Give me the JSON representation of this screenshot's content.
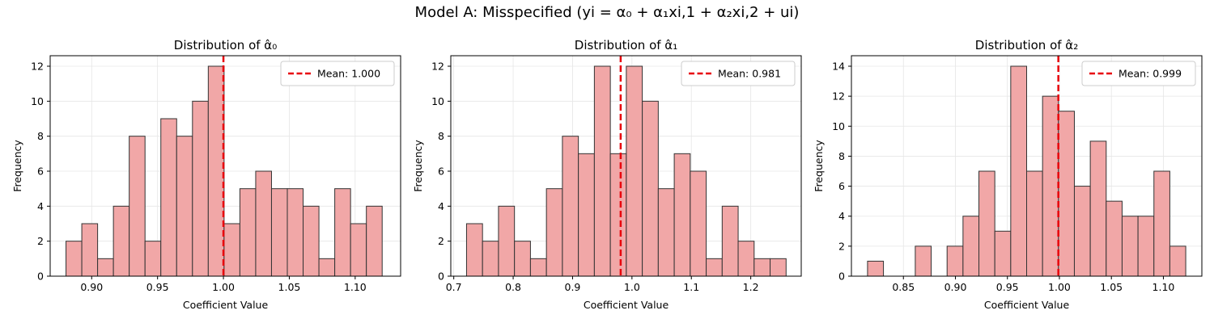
{
  "figure": {
    "suptitle": "Model A: Misspecified (yi = α₀ + α₁xi,1 + α₂xi,2 + ui)"
  },
  "colors": {
    "bar_fill": "#f1a7a7",
    "bar_edge": "#333333",
    "mean_line": "#e8000b"
  },
  "chart_data": [
    {
      "type": "bar",
      "title": "Distribution of α̂₀",
      "xlabel": "Coefficient Value",
      "ylabel": "Frequency",
      "bin_start": 0.8805,
      "bin_width": 0.012,
      "values": [
        2,
        3,
        1,
        4,
        8,
        2,
        9,
        8,
        10,
        12,
        3,
        5,
        6,
        5,
        5,
        4,
        1,
        5,
        3,
        4
      ],
      "mean": 1.0,
      "legend": "Mean: 1.000",
      "legend_position": "top-right",
      "xlim": [
        0.8685,
        1.1345
      ],
      "ylim": [
        0,
        12.6
      ],
      "xticks": [
        {
          "v": 0.9,
          "label": "0.90"
        },
        {
          "v": 0.95,
          "label": "0.95"
        },
        {
          "v": 1.0,
          "label": "1.00"
        },
        {
          "v": 1.05,
          "label": "1.05"
        },
        {
          "v": 1.1,
          "label": "1.10"
        }
      ],
      "yticks": [
        0,
        2,
        4,
        6,
        8,
        10,
        12
      ],
      "grid": true
    },
    {
      "type": "bar",
      "title": "Distribution of α̂₁",
      "xlabel": "Coefficient Value",
      "ylabel": "Frequency",
      "bin_start": 0.7215,
      "bin_width": 0.0269,
      "values": [
        3,
        2,
        4,
        2,
        1,
        5,
        8,
        7,
        12,
        7,
        12,
        10,
        5,
        7,
        6,
        1,
        4,
        2,
        1,
        1
      ],
      "mean": 0.981,
      "legend": "Mean: 0.981",
      "legend_position": "top-right",
      "xlim": [
        0.695,
        1.285
      ],
      "ylim": [
        0,
        12.6
      ],
      "xticks": [
        {
          "v": 0.7,
          "label": "0.7"
        },
        {
          "v": 0.8,
          "label": "0.8"
        },
        {
          "v": 0.9,
          "label": "0.9"
        },
        {
          "v": 1.0,
          "label": "1.0"
        },
        {
          "v": 1.1,
          "label": "1.1"
        },
        {
          "v": 1.2,
          "label": "1.2"
        }
      ],
      "yticks": [
        0,
        2,
        4,
        6,
        8,
        10,
        12
      ],
      "grid": true
    },
    {
      "type": "bar",
      "title": "Distribution of α̂₂",
      "xlabel": "Coefficient Value",
      "ylabel": "Frequency",
      "bin_start": 0.8155,
      "bin_width": 0.0153,
      "values": [
        1,
        0,
        0,
        2,
        0,
        2,
        4,
        7,
        3,
        14,
        7,
        12,
        11,
        6,
        9,
        5,
        4,
        4,
        7,
        2
      ],
      "mean": 0.999,
      "legend": "Mean: 0.999",
      "legend_position": "top-right",
      "xlim": [
        0.8,
        1.137
      ],
      "ylim": [
        0,
        14.7
      ],
      "xticks": [
        {
          "v": 0.85,
          "label": "0.85"
        },
        {
          "v": 0.9,
          "label": "0.90"
        },
        {
          "v": 0.95,
          "label": "0.95"
        },
        {
          "v": 1.0,
          "label": "1.00"
        },
        {
          "v": 1.05,
          "label": "1.05"
        },
        {
          "v": 1.1,
          "label": "1.10"
        }
      ],
      "yticks": [
        0,
        2,
        4,
        6,
        8,
        10,
        12,
        14
      ],
      "grid": true
    }
  ]
}
